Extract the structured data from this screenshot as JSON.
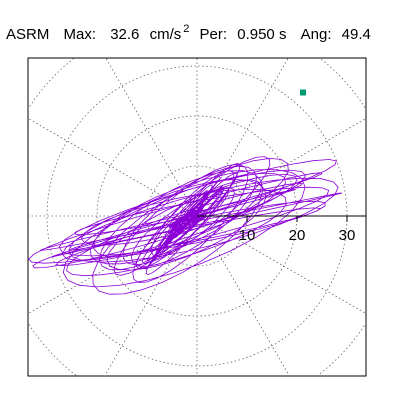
{
  "header": {
    "station": "ASRM",
    "max_label": "Max:",
    "max_value": "32.6",
    "max_unit": "cm/s",
    "max_unit_exp": "2",
    "per_label": "Per:",
    "per_value": "0.950 s",
    "ang_label": "Ang:",
    "ang_value": "49.4"
  },
  "chart_data": {
    "type": "line",
    "title": "",
    "subtitle": "",
    "coordinate_system": "polar",
    "radial_ticks": [
      10,
      20,
      30
    ],
    "radial_tick_labels": [
      "10",
      "20",
      "30"
    ],
    "xlim": [
      -35,
      35
    ],
    "ylim": [
      -32,
      32
    ],
    "angular_grid_step_deg": 30,
    "grid": true,
    "series_color": "#8b00d6",
    "max_marker": {
      "x": 21.2,
      "y": 24.7,
      "color": "#009a73"
    },
    "series": [
      {
        "name": "",
        "note_free": true,
        "summary": {
          "max_magnitude": 32.6,
          "angle_deg": 49.4
        }
      }
    ]
  }
}
